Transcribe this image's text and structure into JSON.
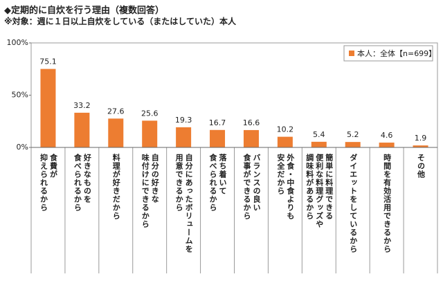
{
  "chart_data": {
    "type": "bar",
    "title": "◆定期的に自炊を行う理由（複数回答）",
    "subtitle": "※対象：週に１日以上自炊をしている（またはしていた）本人",
    "categories": [
      "食費が\n抑えられるから",
      "好きなものを\n食べられるから",
      "料理が好きだから",
      "自分の好きな\n味付けにできるから",
      "自分にあったボリュームを\n用意できるから",
      "落ち着いて\n食べられるから",
      "バランスの良い\n食事ができるから",
      "外食・中食よりも\n安全だから",
      "簡単に料理できる\n便利な料理グッズや\n調味料があるから",
      "ダイエットをしているから",
      "時間を有効活用できるから",
      "その他"
    ],
    "series": [
      {
        "name": "本人：全体【n=699】",
        "color": "#ed7d31",
        "values": [
          75.1,
          33.2,
          27.6,
          25.6,
          19.3,
          16.7,
          16.6,
          10.2,
          5.4,
          5.2,
          4.6,
          1.9
        ]
      }
    ],
    "ylim": [
      0,
      100
    ],
    "yticks": [
      {
        "value": 0,
        "label": "0%"
      },
      {
        "value": 50,
        "label": "50%"
      },
      {
        "value": 100,
        "label": "100%"
      }
    ],
    "legend": "top-right"
  }
}
